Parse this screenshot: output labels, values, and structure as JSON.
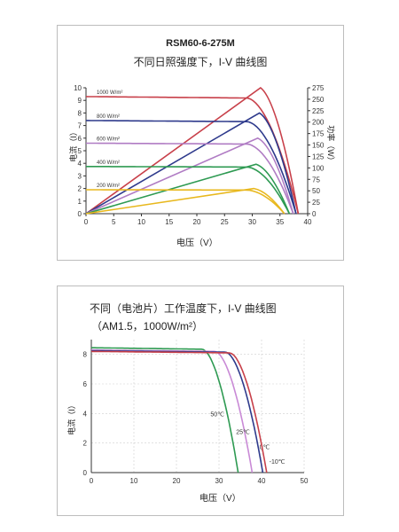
{
  "chart_data": [
    {
      "type": "line",
      "title": "RSM60-6-275M",
      "subtitle": "不同日照强度下，I-V 曲线图",
      "xlabel": "电压（V）",
      "ylabel": "电流（I）",
      "y2label": "功率（W）",
      "xlim": [
        0,
        40
      ],
      "ylim": [
        0,
        10
      ],
      "y2lim": [
        0,
        275
      ],
      "xticks": [
        0,
        5,
        10,
        15,
        20,
        25,
        30,
        35,
        40
      ],
      "yticks": [
        0,
        1,
        2,
        3,
        4,
        5,
        6,
        7,
        8,
        9,
        10
      ],
      "y2ticks": [
        0,
        25,
        50,
        75,
        100,
        125,
        150,
        175,
        200,
        225,
        250,
        275
      ],
      "grid": false,
      "series": [
        {
          "name": "1000 W/m²",
          "color": "#c8404a",
          "isc": 9.3,
          "voc": 38.3,
          "vk": 29,
          "power_x": [
            0,
            31.5,
            38.3
          ],
          "power_y": [
            0,
            275,
            0
          ]
        },
        {
          "name": "800 W/m²",
          "color": "#2e3a8c",
          "isc": 7.4,
          "voc": 37.9,
          "vk": 29,
          "power_x": [
            0,
            31.3,
            37.9
          ],
          "power_y": [
            0,
            220,
            0
          ]
        },
        {
          "name": "600 W/m²",
          "color": "#b07cc4",
          "isc": 5.6,
          "voc": 37.4,
          "vk": 29,
          "power_x": [
            0,
            31.0,
            37.4
          ],
          "power_y": [
            0,
            165,
            0
          ]
        },
        {
          "name": "400 W/m²",
          "color": "#2e9a52",
          "isc": 3.75,
          "voc": 36.7,
          "vk": 29,
          "power_x": [
            0,
            30.7,
            36.7
          ],
          "power_y": [
            0,
            108,
            0
          ]
        },
        {
          "name": "200 W/m²",
          "color": "#e8b81e",
          "isc": 1.9,
          "voc": 35.8,
          "vk": 29,
          "power_x": [
            0,
            30.3,
            35.8
          ],
          "power_y": [
            0,
            55,
            0
          ]
        }
      ]
    },
    {
      "type": "line",
      "title": "不同（电池片）工作温度下，I-V 曲线图",
      "subtitle": "（AM1.5，1000W/m²）",
      "xlabel": "电压（V）",
      "ylabel": "电流（I）",
      "xlim": [
        0,
        50
      ],
      "ylim": [
        0,
        9
      ],
      "xticks": [
        0,
        10,
        20,
        30,
        40,
        50
      ],
      "yticks": [
        0,
        2,
        4,
        6,
        8
      ],
      "grid": true,
      "series": [
        {
          "name": "50℃",
          "color": "#2e9a52",
          "isc": 8.45,
          "voc": 34.5,
          "vk": 26
        },
        {
          "name": "25℃",
          "color": "#c98ad6",
          "isc": 8.3,
          "voc": 37.8,
          "vk": 29
        },
        {
          "name": "0℃",
          "color": "#2e3a8c",
          "isc": 8.25,
          "voc": 40.3,
          "vk": 31.5
        },
        {
          "name": "-10℃",
          "color": "#c8404a",
          "isc": 8.2,
          "voc": 41.2,
          "vk": 32.5
        }
      ]
    }
  ]
}
